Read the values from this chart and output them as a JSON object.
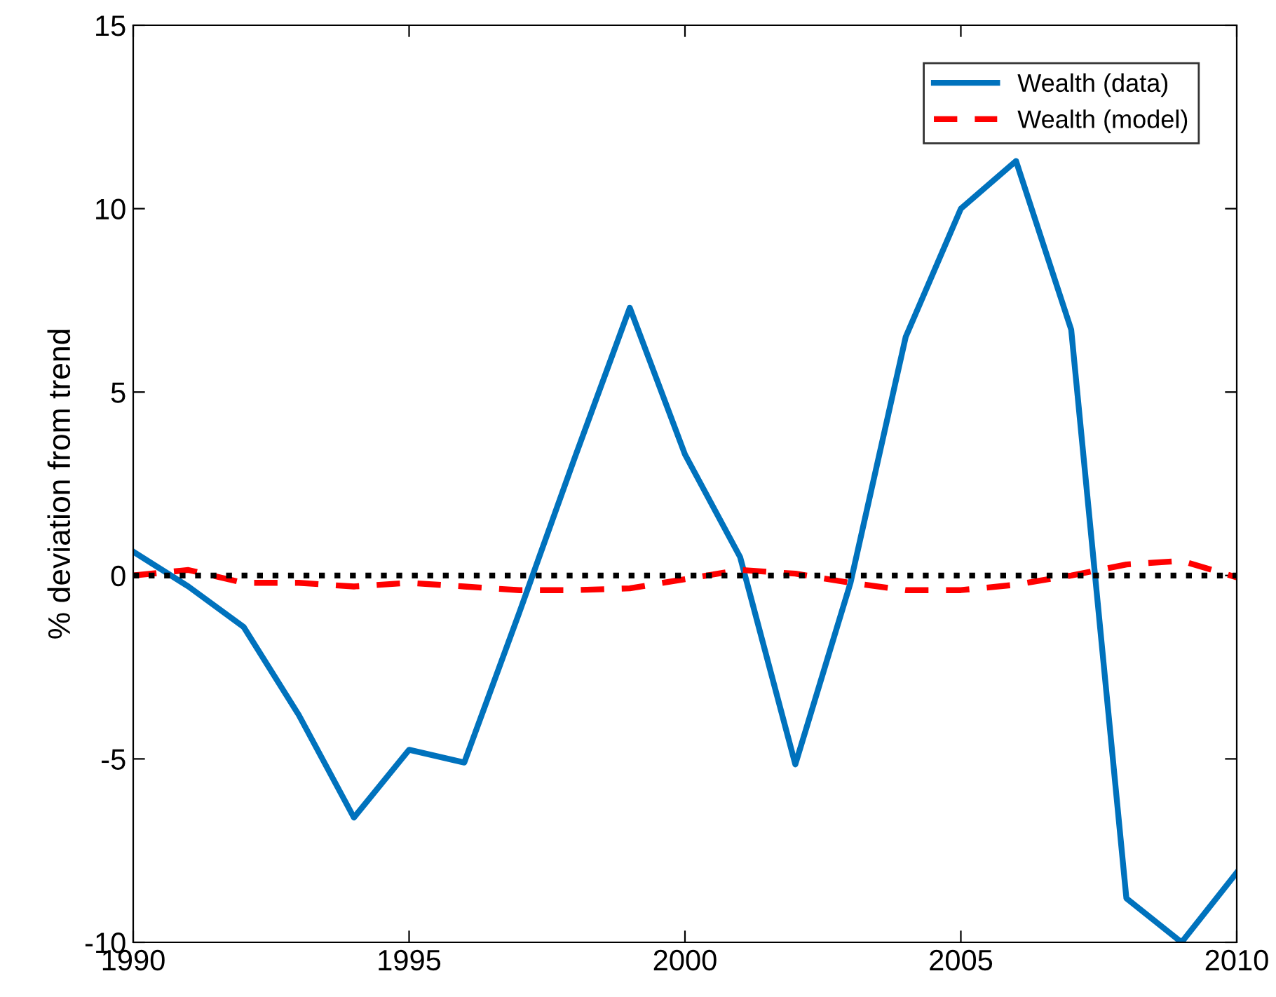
{
  "chart_data": {
    "type": "line",
    "ylabel": "% deviation from trend",
    "x": [
      1990,
      1991,
      1992,
      1993,
      1994,
      1995,
      1996,
      1997,
      1998,
      1999,
      2000,
      2001,
      2002,
      2003,
      2004,
      2005,
      2006,
      2007,
      2008,
      2009,
      2010
    ],
    "series": [
      {
        "name": "Wealth (data)",
        "color": "#0072bd",
        "line_style": "solid",
        "values": [
          0.65,
          -0.3,
          -1.4,
          -3.8,
          -6.6,
          -4.75,
          -5.1,
          -1.0,
          3.2,
          7.3,
          3.3,
          0.5,
          -5.15,
          -0.2,
          6.5,
          10.0,
          11.3,
          6.7,
          -8.8,
          -10.0,
          -8.1
        ]
      },
      {
        "name": "Wealth (model)",
        "color": "#ff0000",
        "line_style": "dashed",
        "values": [
          0.0,
          0.15,
          -0.2,
          -0.2,
          -0.3,
          -0.2,
          -0.3,
          -0.4,
          -0.4,
          -0.35,
          -0.1,
          0.15,
          0.05,
          -0.2,
          -0.4,
          -0.4,
          -0.25,
          0.0,
          0.3,
          0.4,
          -0.05
        ]
      }
    ],
    "ref_lines": [
      {
        "axis": "y",
        "value": 0,
        "color": "#000000",
        "line_style": "dotted"
      }
    ],
    "xlim": [
      1990,
      2010
    ],
    "xticks": [
      1990,
      1995,
      2000,
      2005,
      2010
    ],
    "ylim": [
      -10,
      15
    ],
    "yticks": [
      -10,
      -5,
      0,
      5,
      10,
      15
    ],
    "grid": false,
    "legend": "top right"
  }
}
